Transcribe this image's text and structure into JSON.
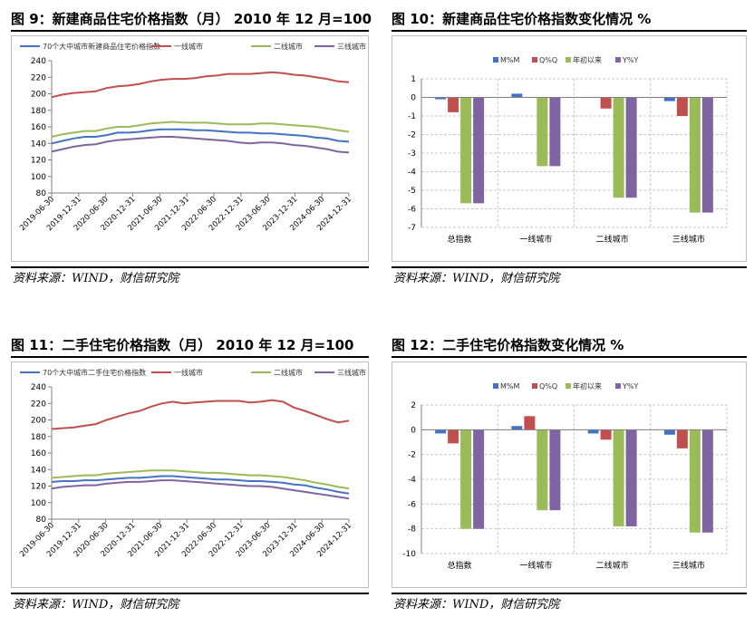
{
  "colors": {
    "blue": "#4472c4",
    "red": "#c0504d",
    "green": "#9bbb59",
    "purple": "#8064a2",
    "grid": "#c8c8c8"
  },
  "panels": [
    {
      "title": "图 9：新建商品住宅价格指数（月） 2010 年 12 月=100",
      "source": "资料来源：WIND，财信研究院"
    },
    {
      "title": "图 10：新建商品住宅价格指数变化情况  %",
      "source": "资料来源：WIND，财信研究院"
    },
    {
      "title": "图 11：二手住宅价格指数（月） 2010 年 12 月=100",
      "source": "资料来源：WIND，财信研究院"
    },
    {
      "title": "图 12：二手住宅价格指数变化情况  %",
      "source": "资料来源：WIND，财信研究院"
    }
  ],
  "chart_data": [
    {
      "type": "line",
      "x_ticks": [
        "2019-06-30",
        "2019-12-31",
        "2020-06-30",
        "2020-12-31",
        "2021-06-30",
        "2021-12-31",
        "2022-06-30",
        "2022-12-31",
        "2023-06-30",
        "2023-12-31",
        "2024-06-30",
        "2024-12-31"
      ],
      "ylim": [
        80,
        240
      ],
      "yticks": [
        80,
        100,
        120,
        140,
        160,
        180,
        200,
        220,
        240
      ],
      "grid": false,
      "legend": "top",
      "series": [
        {
          "name": "70个大中城市新建商品住宅价格指数",
          "color": "blue",
          "values": [
            140,
            143,
            146,
            148,
            148,
            150,
            153,
            153,
            154,
            156,
            157,
            157,
            157,
            156,
            156,
            155,
            154,
            153,
            153,
            152,
            152,
            151,
            150,
            149,
            147,
            146,
            143,
            142
          ]
        },
        {
          "name": "一线城市",
          "color": "red",
          "values": [
            196,
            199,
            201,
            202,
            203,
            207,
            209,
            210,
            212,
            215,
            217,
            218,
            218,
            219,
            221,
            222,
            224,
            224,
            224,
            225,
            226,
            225,
            223,
            222,
            220,
            218,
            215,
            214
          ]
        },
        {
          "name": "二线城市",
          "color": "green",
          "values": [
            148,
            151,
            153,
            155,
            155,
            158,
            160,
            160,
            162,
            164,
            165,
            166,
            165,
            165,
            165,
            164,
            163,
            163,
            163,
            164,
            164,
            163,
            162,
            161,
            160,
            158,
            156,
            154
          ]
        },
        {
          "name": "三线城市",
          "color": "purple",
          "values": [
            130,
            133,
            136,
            138,
            139,
            142,
            144,
            145,
            146,
            147,
            148,
            148,
            147,
            146,
            145,
            144,
            143,
            141,
            140,
            141,
            141,
            140,
            138,
            137,
            135,
            133,
            130,
            129
          ]
        }
      ]
    },
    {
      "type": "bar",
      "categories": [
        "总指数",
        "一线城市",
        "二线城市",
        "三线城市"
      ],
      "ylim": [
        -7,
        1
      ],
      "yticks": [
        1,
        0,
        -1,
        -2,
        -3,
        -4,
        -5,
        -6,
        -7
      ],
      "grid": true,
      "legend": "top",
      "series": [
        {
          "name": "M%M",
          "color": "blue",
          "values": [
            -0.1,
            0.2,
            0.0,
            -0.2
          ]
        },
        {
          "name": "Q%Q",
          "color": "red",
          "values": [
            -0.8,
            0.0,
            -0.6,
            -1.0
          ]
        },
        {
          "name": "年初以来",
          "color": "green",
          "values": [
            -5.7,
            -3.7,
            -5.4,
            -6.2
          ]
        },
        {
          "name": "Y%Y",
          "color": "purple",
          "values": [
            -5.7,
            -3.7,
            -5.4,
            -6.2
          ]
        }
      ]
    },
    {
      "type": "line",
      "x_ticks": [
        "2019-06-30",
        "2019-12-31",
        "2020-06-30",
        "2020-12-31",
        "2021-06-30",
        "2021-12-31",
        "2022-06-30",
        "2022-12-31",
        "2023-06-30",
        "2023-12-31",
        "2024-06-30",
        "2024-12-31"
      ],
      "ylim": [
        80,
        240
      ],
      "yticks": [
        80,
        100,
        120,
        140,
        160,
        180,
        200,
        220,
        240
      ],
      "grid": false,
      "legend": "top",
      "series": [
        {
          "name": "70个大中城市二手住宅价格指数",
          "color": "blue",
          "values": [
            125,
            126,
            126,
            127,
            127,
            128,
            129,
            130,
            130,
            131,
            132,
            132,
            131,
            130,
            129,
            128,
            128,
            127,
            126,
            126,
            125,
            124,
            122,
            121,
            118,
            116,
            113,
            111
          ]
        },
        {
          "name": "一线城市",
          "color": "red",
          "values": [
            189,
            190,
            191,
            193,
            195,
            200,
            204,
            208,
            211,
            216,
            220,
            222,
            220,
            221,
            222,
            223,
            223,
            223,
            221,
            222,
            224,
            222,
            215,
            211,
            206,
            201,
            197,
            199
          ]
        },
        {
          "name": "二线城市",
          "color": "green",
          "values": [
            130,
            131,
            132,
            133,
            133,
            135,
            136,
            137,
            138,
            139,
            139,
            139,
            138,
            137,
            136,
            136,
            135,
            134,
            133,
            133,
            132,
            131,
            129,
            127,
            124,
            122,
            119,
            117
          ]
        },
        {
          "name": "三线城市",
          "color": "purple",
          "values": [
            117,
            119,
            120,
            121,
            121,
            123,
            124,
            125,
            125,
            126,
            127,
            127,
            126,
            125,
            124,
            123,
            122,
            121,
            120,
            120,
            119,
            117,
            115,
            113,
            111,
            109,
            107,
            105
          ]
        }
      ]
    },
    {
      "type": "bar",
      "categories": [
        "总指数",
        "一线城市",
        "二线城市",
        "三线城市"
      ],
      "ylim": [
        -10,
        2
      ],
      "yticks": [
        2,
        0,
        -2,
        -4,
        -6,
        -8,
        -10
      ],
      "grid": true,
      "legend": "top",
      "series": [
        {
          "name": "M%M",
          "color": "blue",
          "values": [
            -0.3,
            0.3,
            -0.3,
            -0.4
          ]
        },
        {
          "name": "Q%Q",
          "color": "red",
          "values": [
            -1.1,
            1.1,
            -0.8,
            -1.5
          ]
        },
        {
          "name": "年初以来",
          "color": "green",
          "values": [
            -8.0,
            -6.5,
            -7.8,
            -8.3
          ]
        },
        {
          "name": "Y%Y",
          "color": "purple",
          "values": [
            -8.0,
            -6.5,
            -7.8,
            -8.3
          ]
        }
      ]
    }
  ]
}
